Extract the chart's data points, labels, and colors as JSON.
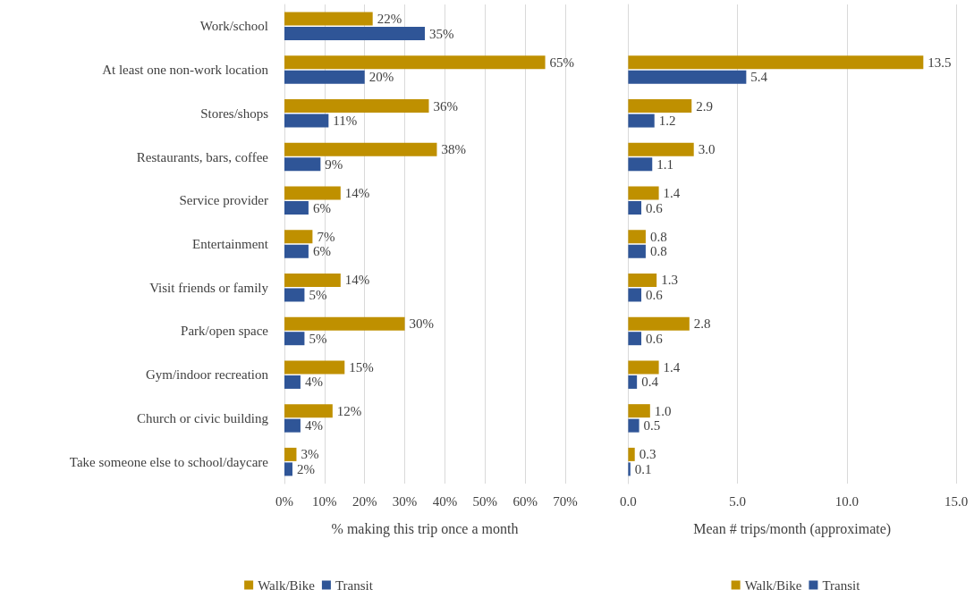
{
  "chart_data": [
    {
      "type": "bar",
      "orientation": "horizontal",
      "xlabel": "% making this trip once a month",
      "categories": [
        "Work/school",
        "At least one non-work location",
        "Stores/shops",
        "Restaurants, bars, coffee",
        "Service provider",
        "Entertainment",
        "Visit friends or family",
        "Park/open space",
        "Gym/indoor recreation",
        "Church or civic building",
        "Take someone else to school/daycare"
      ],
      "series": [
        {
          "name": "Walk/Bike",
          "color": "#bf9000",
          "values": [
            22,
            65,
            36,
            38,
            14,
            7,
            14,
            30,
            15,
            12,
            3
          ],
          "value_labels": [
            "22%",
            "65%",
            "36%",
            "38%",
            "14%",
            "7%",
            "14%",
            "30%",
            "15%",
            "12%",
            "3%"
          ]
        },
        {
          "name": "Transit",
          "color": "#2f5597",
          "values": [
            35,
            20,
            11,
            9,
            6,
            6,
            5,
            5,
            4,
            4,
            2
          ],
          "value_labels": [
            "35%",
            "20%",
            "11%",
            "9%",
            "6%",
            "6%",
            "5%",
            "5%",
            "4%",
            "4%",
            "2%"
          ]
        }
      ],
      "xlim": [
        0,
        70
      ],
      "xticks": [
        {
          "value": 0,
          "label": "0%"
        },
        {
          "value": 10,
          "label": "10%"
        },
        {
          "value": 20,
          "label": "20%"
        },
        {
          "value": 30,
          "label": "30%"
        },
        {
          "value": 40,
          "label": "40%"
        },
        {
          "value": 50,
          "label": "50%"
        },
        {
          "value": 60,
          "label": "60%"
        },
        {
          "value": 70,
          "label": "70%"
        }
      ],
      "grid": "x",
      "legend": "bottom"
    },
    {
      "type": "bar",
      "orientation": "horizontal",
      "xlabel": "Mean # trips/month (approximate)",
      "categories": [
        null,
        null,
        null,
        null,
        null,
        null,
        null,
        null,
        null,
        null,
        null
      ],
      "series": [
        {
          "name": "Walk/Bike",
          "color": "#bf9000",
          "values": [
            null,
            13.5,
            2.9,
            3.0,
            1.4,
            0.8,
            1.3,
            2.8,
            1.4,
            1.0,
            0.3
          ],
          "value_labels": [
            null,
            "13.5",
            "2.9",
            "3.0",
            "1.4",
            "0.8",
            "1.3",
            "2.8",
            "1.4",
            "1.0",
            "0.3"
          ]
        },
        {
          "name": "Transit",
          "color": "#2f5597",
          "values": [
            null,
            5.4,
            1.2,
            1.1,
            0.6,
            0.8,
            0.6,
            0.6,
            0.4,
            0.5,
            0.1
          ],
          "value_labels": [
            null,
            "5.4",
            "1.2",
            "1.1",
            "0.6",
            "0.8",
            "0.6",
            "0.6",
            "0.4",
            "0.5",
            "0.1"
          ]
        }
      ],
      "xlim": [
        0,
        15
      ],
      "xticks": [
        {
          "value": 0,
          "label": "0.0"
        },
        {
          "value": 5,
          "label": "5.0"
        },
        {
          "value": 10,
          "label": "10.0"
        },
        {
          "value": 15,
          "label": "15.0"
        }
      ],
      "grid": "x",
      "legend": "bottom",
      "tick_labels": "x"
    }
  ]
}
